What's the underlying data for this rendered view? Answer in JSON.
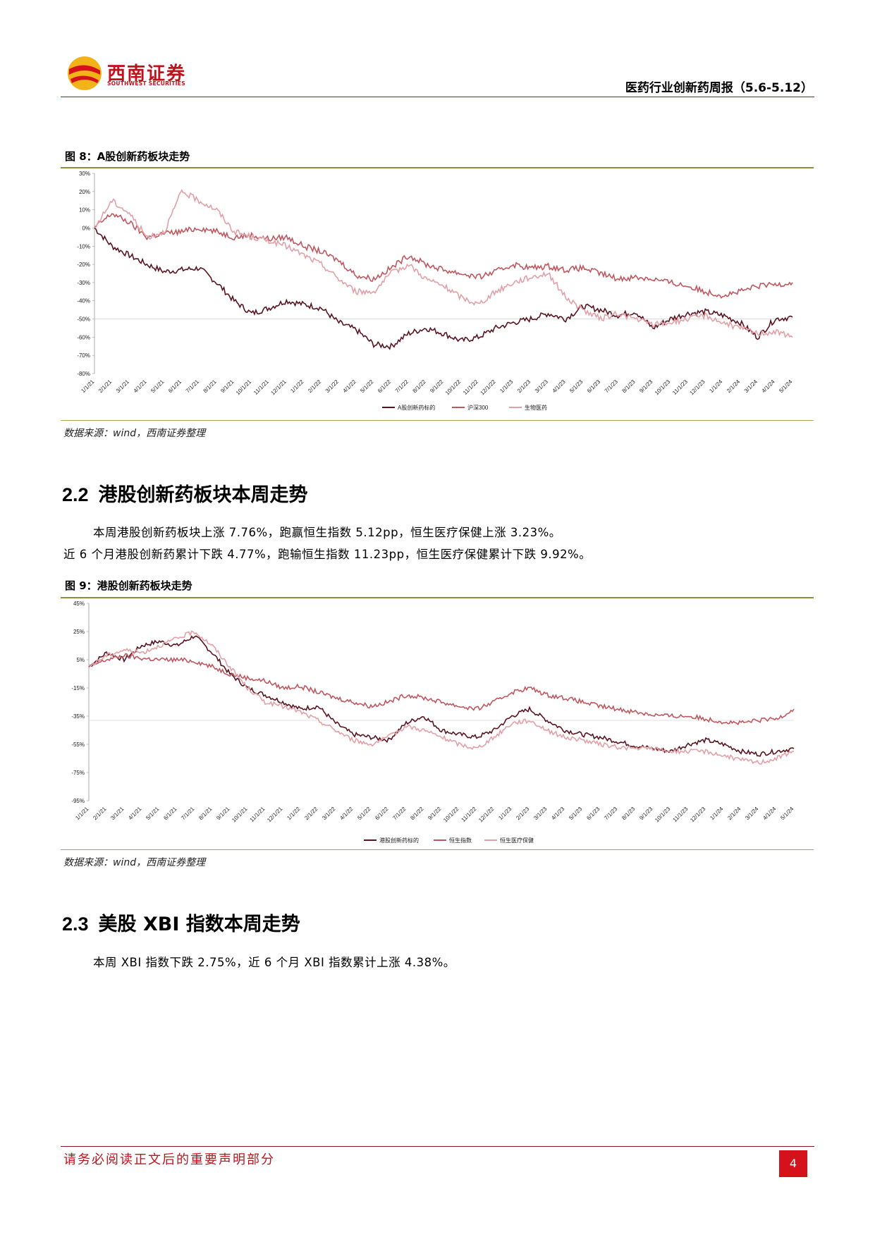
{
  "header": {
    "logo_cn": "西南证券",
    "logo_en": "SOUTHWEST SECURITIES",
    "report_title": "医药行业创新药周报（5.6-5.12）"
  },
  "figure8": {
    "title": "图 8：A股创新药板块走势",
    "source": "数据来源：wind，西南证券整理"
  },
  "section22": {
    "number": "2.2",
    "title": "港股创新药板块本周走势",
    "para1": "本周港股创新药板块上涨 7.76%，跑赢恒生指数 5.12pp，恒生医疗保健上涨 3.23%。",
    "para2": "近 6 个月港股创新药累计下跌 4.77%，跑输恒生指数 11.23pp，恒生医疗保健累计下跌 9.92%。"
  },
  "figure9": {
    "title": "图 9：港股创新药板块走势",
    "source": "数据来源：wind，西南证券整理"
  },
  "section23": {
    "number": "2.3",
    "title": "美股 XBI 指数本周走势",
    "para1": "本周 XBI 指数下跌 2.75%，近 6 个月 XBI 指数累计上涨 4.38%。"
  },
  "footer": {
    "disclaimer": "请务必阅读正文后的重要声明部分",
    "page": "4"
  },
  "chart_data": [
    {
      "type": "line",
      "ylim": [
        -80,
        30
      ],
      "y_ticks": [
        "30%",
        "20%",
        "10%",
        "0%",
        "-10%",
        "-20%",
        "-30%",
        "-40%",
        "-50%",
        "-60%",
        "-70%",
        "-80%"
      ],
      "categories": [
        "1/1/21",
        "2/1/21",
        "3/1/21",
        "4/1/21",
        "5/1/21",
        "6/1/21",
        "7/1/21",
        "8/1/21",
        "9/1/21",
        "10/1/21",
        "11/1/21",
        "12/1/21",
        "1/1/22",
        "2/1/22",
        "3/1/22",
        "4/1/22",
        "5/1/22",
        "6/1/22",
        "7/1/22",
        "8/1/22",
        "9/1/22",
        "10/1/22",
        "11/1/22",
        "12/1/22",
        "1/1/23",
        "2/1/23",
        "3/1/23",
        "4/1/23",
        "5/1/23",
        "6/1/23",
        "7/1/23",
        "8/1/23",
        "9/1/23",
        "10/1/23",
        "11/1/23",
        "12/1/23",
        "1/1/24",
        "2/1/24",
        "3/1/24",
        "4/1/24",
        "5/1/24"
      ],
      "series": [
        {
          "name": "A股创新药标的",
          "color": "#5a1420",
          "values": [
            0,
            -10,
            -15,
            -20,
            -24,
            -23,
            -22,
            -30,
            -40,
            -47,
            -44,
            -40,
            -42,
            -44,
            -52,
            -56,
            -64,
            -65,
            -58,
            -55,
            -58,
            -62,
            -60,
            -55,
            -52,
            -50,
            -47,
            -50,
            -43,
            -45,
            -48,
            -46,
            -55,
            -50,
            -47,
            -46,
            -48,
            -52,
            -60,
            -50,
            -49
          ]
        },
        {
          "name": "沪深300",
          "color": "#c0575f",
          "values": [
            0,
            8,
            3,
            -5,
            -3,
            -2,
            0,
            -2,
            -5,
            -4,
            -6,
            -5,
            -10,
            -13,
            -18,
            -26,
            -28,
            -22,
            -15,
            -20,
            -23,
            -25,
            -27,
            -24,
            -20,
            -22,
            -21,
            -23,
            -22,
            -25,
            -28,
            -27,
            -28,
            -30,
            -32,
            -35,
            -37,
            -35,
            -32,
            -31,
            -30
          ]
        },
        {
          "name": "生物医药",
          "color": "#e3a0a6",
          "values": [
            0,
            15,
            8,
            -5,
            -2,
            20,
            15,
            10,
            -2,
            -5,
            -7,
            -10,
            -15,
            -20,
            -28,
            -35,
            -35,
            -25,
            -20,
            -28,
            -32,
            -38,
            -42,
            -35,
            -30,
            -27,
            -25,
            -38,
            -45,
            -50,
            -47,
            -50,
            -53,
            -52,
            -50,
            -48,
            -52,
            -55,
            -58,
            -57,
            -60
          ]
        }
      ]
    },
    {
      "type": "line",
      "ylim": [
        -95,
        45
      ],
      "y_ticks": [
        "45%",
        "25%",
        "5%",
        "-15%",
        "-35%",
        "-55%",
        "-75%",
        "-95%"
      ],
      "categories": [
        "1/1/21",
        "2/1/21",
        "3/1/21",
        "4/1/21",
        "5/1/21",
        "6/1/21",
        "7/1/21",
        "8/1/21",
        "9/1/21",
        "10/1/21",
        "11/1/21",
        "12/1/21",
        "1/1/22",
        "2/1/22",
        "3/1/22",
        "4/1/22",
        "5/1/22",
        "6/1/22",
        "7/1/22",
        "8/1/22",
        "9/1/22",
        "10/1/22",
        "11/1/22",
        "12/1/22",
        "1/1/23",
        "2/1/23",
        "3/1/23",
        "4/1/23",
        "5/1/23",
        "6/1/23",
        "7/1/23",
        "8/1/23",
        "9/1/23",
        "10/1/23",
        "11/1/23",
        "12/1/23",
        "1/1/24",
        "2/1/24",
        "3/1/24",
        "4/1/24",
        "5/1/24"
      ],
      "series": [
        {
          "name": "港股创新药标的",
          "color": "#5a1420",
          "values": [
            0,
            10,
            5,
            15,
            18,
            15,
            22,
            10,
            -5,
            -15,
            -20,
            -25,
            -30,
            -28,
            -40,
            -48,
            -50,
            -52,
            -40,
            -35,
            -45,
            -48,
            -50,
            -45,
            -35,
            -30,
            -38,
            -45,
            -48,
            -50,
            -53,
            -56,
            -58,
            -60,
            -55,
            -52,
            -55,
            -60,
            -62,
            -60,
            -58
          ]
        },
        {
          "name": "恒生指数",
          "color": "#c0575f",
          "values": [
            0,
            5,
            8,
            6,
            5,
            5,
            4,
            0,
            -5,
            -8,
            -10,
            -15,
            -14,
            -18,
            -22,
            -25,
            -28,
            -25,
            -20,
            -22,
            -25,
            -28,
            -30,
            -25,
            -18,
            -15,
            -20,
            -22,
            -25,
            -28,
            -30,
            -32,
            -34,
            -35,
            -35,
            -37,
            -39,
            -40,
            -38,
            -37,
            -30
          ]
        },
        {
          "name": "恒生医疗保健",
          "color": "#e3a0a6",
          "values": [
            0,
            8,
            12,
            10,
            15,
            20,
            25,
            15,
            0,
            -15,
            -25,
            -28,
            -32,
            -38,
            -45,
            -52,
            -55,
            -50,
            -42,
            -45,
            -50,
            -55,
            -58,
            -50,
            -40,
            -38,
            -45,
            -50,
            -52,
            -55,
            -57,
            -58,
            -58,
            -60,
            -60,
            -60,
            -63,
            -66,
            -68,
            -65,
            -60
          ]
        }
      ]
    }
  ]
}
